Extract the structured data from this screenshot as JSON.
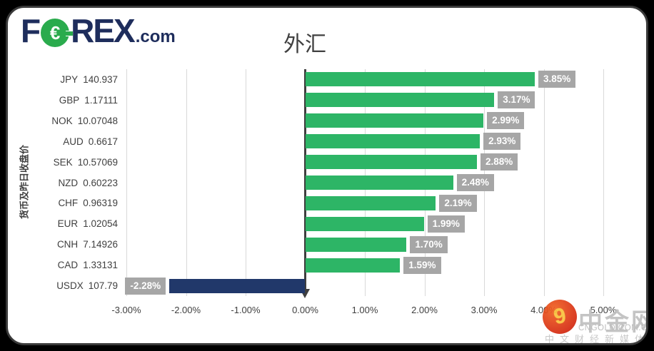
{
  "brand": {
    "f": "F",
    "o_symbol": "€",
    "rex": "REX",
    "tld": ".com"
  },
  "chart_data": {
    "type": "bar",
    "orientation": "horizontal",
    "title": "外汇",
    "ylabel": "货币及昨日收盘价",
    "xlim": [
      -3,
      5
    ],
    "x_tick_labels": [
      "-3.00%",
      "-2.00%",
      "-1.00%",
      "0.00%",
      "1.00%",
      "2.00%",
      "3.00%",
      "4.00%",
      "5.00%"
    ],
    "grid": true,
    "legend": "none",
    "rows": [
      {
        "code": "JPY",
        "close": "140.937",
        "value": 3.85,
        "label": "3.85%"
      },
      {
        "code": "GBP",
        "close": "1.17111",
        "value": 3.17,
        "label": "3.17%"
      },
      {
        "code": "NOK",
        "close": "10.07048",
        "value": 2.99,
        "label": "2.99%"
      },
      {
        "code": "AUD",
        "close": "0.6617",
        "value": 2.93,
        "label": "2.93%"
      },
      {
        "code": "SEK",
        "close": "10.57069",
        "value": 2.88,
        "label": "2.88%"
      },
      {
        "code": "NZD",
        "close": "0.60223",
        "value": 2.48,
        "label": "2.48%"
      },
      {
        "code": "CHF",
        "close": "0.96319",
        "value": 2.19,
        "label": "2.19%"
      },
      {
        "code": "EUR",
        "close": "1.02054",
        "value": 1.99,
        "label": "1.99%"
      },
      {
        "code": "CNH",
        "close": "7.14926",
        "value": 1.7,
        "label": "1.70%"
      },
      {
        "code": "CAD",
        "close": "1.33131",
        "value": 1.59,
        "label": "1.59%"
      },
      {
        "code": "USDX",
        "close": "107.79",
        "value": -2.28,
        "label": "-2.28%"
      }
    ],
    "colors": {
      "positive": "#2db566",
      "negative": "#21386a",
      "label_box": "#a6a6a6",
      "gridline": "#d9d9d9",
      "axis_line": "#3f3f3f"
    }
  },
  "watermark": {
    "swirl": "9",
    "name": "中金网",
    "domain": "CNGOLD.COM.CN",
    "tagline": "中文财经新媒体"
  }
}
